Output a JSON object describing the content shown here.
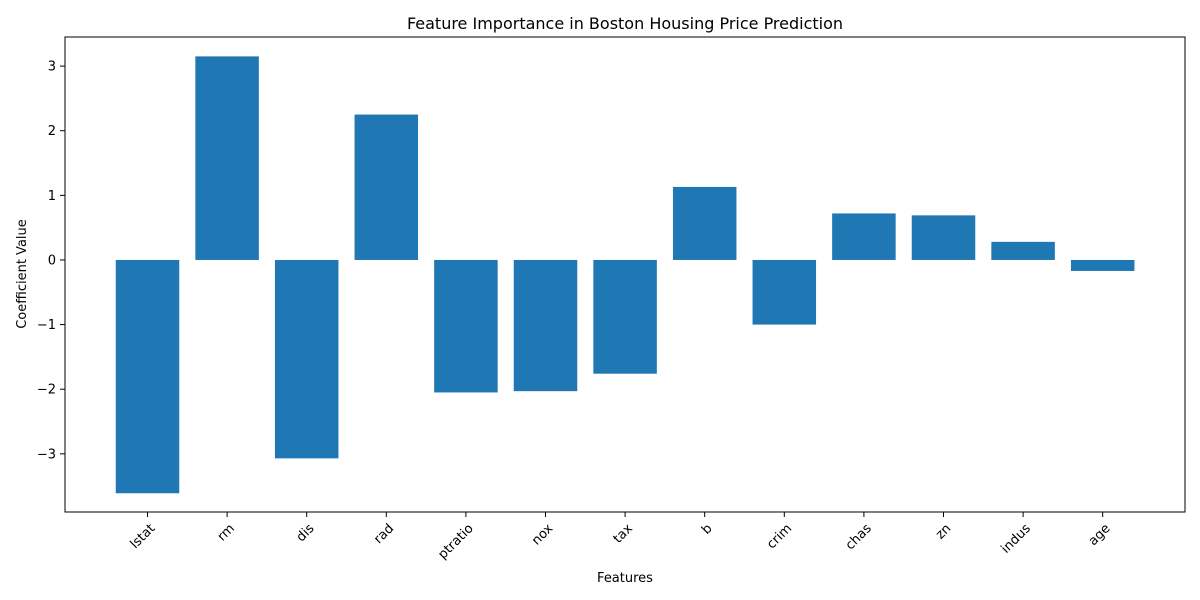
{
  "chart_data": {
    "type": "bar",
    "title": "Feature Importance in Boston Housing Price Prediction",
    "xlabel": "Features",
    "ylabel": "Coefficient Value",
    "categories": [
      "lstat",
      "rm",
      "dis",
      "rad",
      "ptratio",
      "nox",
      "tax",
      "b",
      "crim",
      "chas",
      "zn",
      "indus",
      "age"
    ],
    "values": [
      -3.61,
      3.15,
      -3.07,
      2.25,
      -2.05,
      -2.03,
      -1.76,
      1.13,
      -1.0,
      0.72,
      0.69,
      0.28,
      -0.17
    ],
    "yticks": [
      -3,
      -2,
      -1,
      0,
      1,
      2,
      3
    ],
    "ytick_labels": [
      "−3",
      "−2",
      "−1",
      "0",
      "1",
      "2",
      "3"
    ],
    "ylim": [
      -3.9,
      3.45
    ],
    "bar_color": "#1f77b4",
    "grid": false,
    "legend": "none"
  }
}
